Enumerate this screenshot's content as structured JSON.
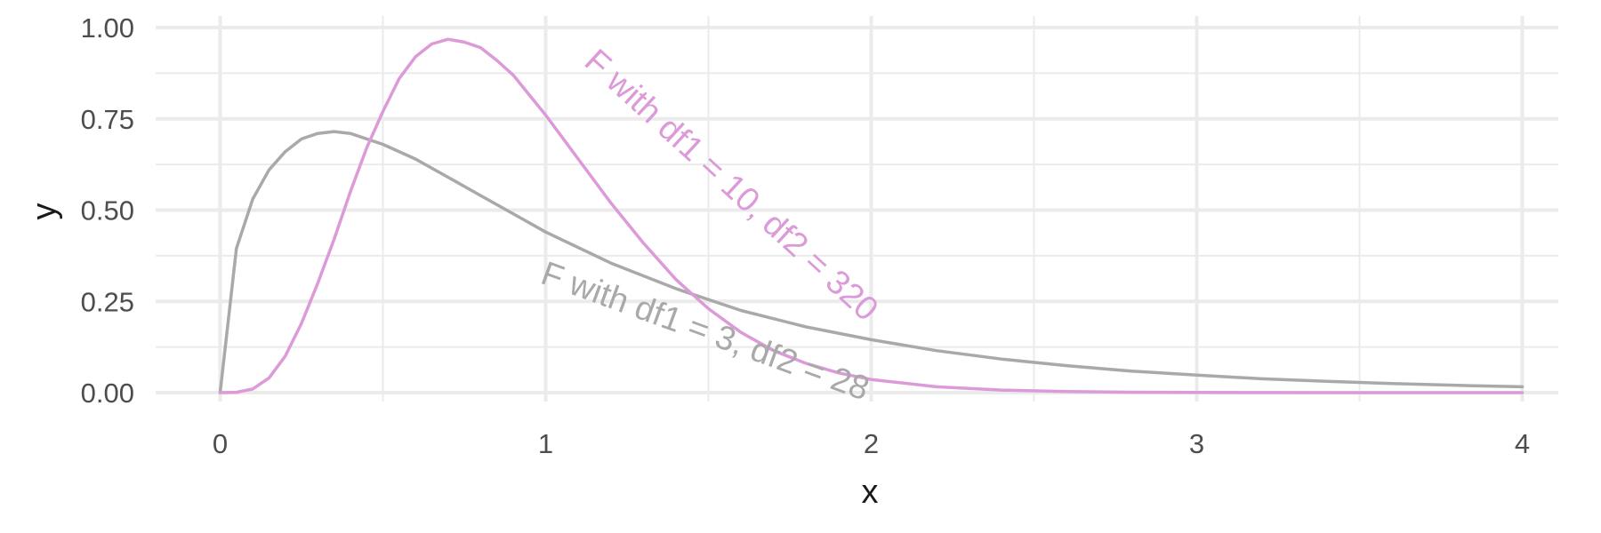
{
  "chart_data": {
    "type": "line",
    "title": "",
    "xlabel": "x",
    "ylabel": "y",
    "xlim": [
      0,
      4
    ],
    "ylim": [
      0,
      1
    ],
    "x_ticks": [
      "0",
      "1",
      "2",
      "3",
      "4"
    ],
    "y_ticks": [
      "0.00",
      "0.25",
      "0.50",
      "0.75",
      "1.00"
    ],
    "grid": true,
    "legend": "none",
    "series": [
      {
        "name": "F with df1 = 3, df2 = 28",
        "color": "#a9a9a9",
        "df1": 3,
        "df2": 28,
        "x": [
          0,
          0.05,
          0.1,
          0.15,
          0.2,
          0.25,
          0.3,
          0.35,
          0.4,
          0.5,
          0.6,
          0.7,
          0.8,
          0.9,
          1.0,
          1.2,
          1.4,
          1.6,
          1.8,
          2.0,
          2.2,
          2.4,
          2.6,
          2.8,
          3.0,
          3.2,
          3.4,
          3.6,
          3.8,
          4.0
        ],
        "y": [
          0,
          0.395,
          0.53,
          0.61,
          0.66,
          0.695,
          0.71,
          0.715,
          0.71,
          0.68,
          0.64,
          0.59,
          0.54,
          0.49,
          0.44,
          0.355,
          0.285,
          0.225,
          0.18,
          0.145,
          0.115,
          0.092,
          0.074,
          0.059,
          0.048,
          0.038,
          0.031,
          0.025,
          0.02,
          0.016
        ]
      },
      {
        "name": "F with df1 = 10, df2 = 320",
        "color": "#dc9ad9",
        "df1": 10,
        "df2": 320,
        "x": [
          0,
          0.05,
          0.1,
          0.15,
          0.2,
          0.25,
          0.3,
          0.35,
          0.4,
          0.45,
          0.5,
          0.55,
          0.6,
          0.65,
          0.7,
          0.75,
          0.8,
          0.85,
          0.9,
          0.95,
          1.0,
          1.1,
          1.2,
          1.3,
          1.4,
          1.5,
          1.6,
          1.7,
          1.8,
          1.9,
          2.0,
          2.2,
          2.4,
          2.6,
          2.8,
          3.0,
          3.5,
          4.0
        ],
        "y": [
          0,
          0.001,
          0.01,
          0.04,
          0.1,
          0.19,
          0.3,
          0.42,
          0.55,
          0.67,
          0.77,
          0.86,
          0.92,
          0.955,
          0.968,
          0.96,
          0.945,
          0.91,
          0.87,
          0.815,
          0.76,
          0.64,
          0.52,
          0.41,
          0.31,
          0.23,
          0.165,
          0.115,
          0.08,
          0.054,
          0.036,
          0.016,
          0.007,
          0.003,
          0.0012,
          0.0005,
          5e-05,
          0
        ]
      }
    ]
  }
}
